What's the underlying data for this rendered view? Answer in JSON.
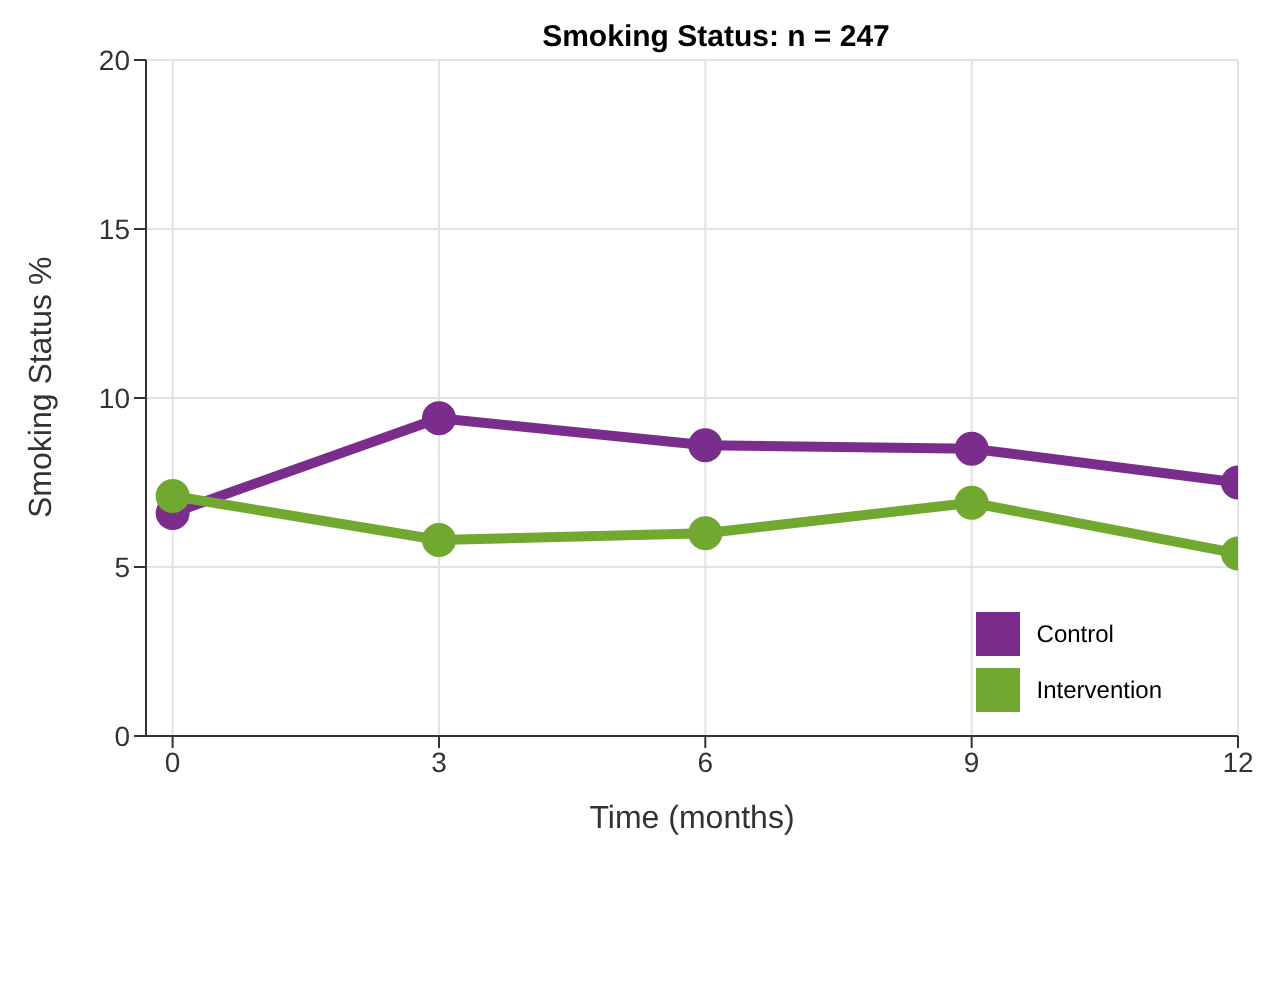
{
  "chart_data": {
    "type": "line",
    "title": "Smoking Status: n = 247",
    "xlabel": "Time (months)",
    "ylabel": "Smoking Status %",
    "x": [
      0,
      3,
      6,
      9,
      12
    ],
    "series": [
      {
        "name": "Control",
        "color": "#7b2d8e",
        "values": [
          6.6,
          9.4,
          8.6,
          8.5,
          7.5
        ]
      },
      {
        "name": "Intervention",
        "color": "#70a830",
        "values": [
          7.1,
          5.8,
          6.0,
          6.9,
          5.4
        ]
      }
    ],
    "xlim": [
      -0.3,
      12
    ],
    "xticks": [
      0,
      3,
      6,
      9,
      12
    ],
    "ylim": [
      0,
      20
    ],
    "yticks": [
      0,
      5,
      10,
      15,
      20
    ],
    "grid": true,
    "legend": "bottom right",
    "marker": "circle",
    "line_style": "solid"
  }
}
